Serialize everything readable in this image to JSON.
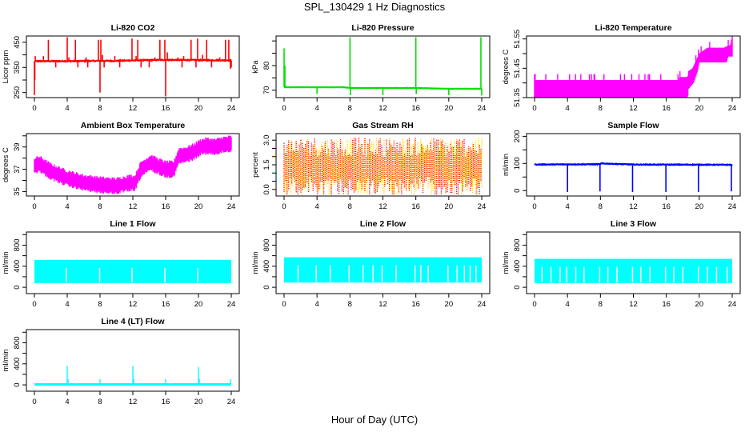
{
  "title": "SPL_130429  1 Hz Diagnostics",
  "xlabel": "Hour of Day (UTC)",
  "chart_data": [
    {
      "type": "line",
      "title": "Li-820 CO2",
      "ylabel": "Licor ppm",
      "color": "#ff0000",
      "xlim": [
        0,
        24
      ],
      "ylim": [
        230,
        475
      ],
      "xticks": [
        0,
        4,
        8,
        12,
        16,
        20,
        24
      ],
      "yticks": [
        250,
        300,
        350,
        400,
        450
      ],
      "ytick_labels": [
        "250",
        "",
        "350",
        "",
        "450"
      ],
      "baseline": [
        [
          0,
          375
        ],
        [
          4,
          375
        ],
        [
          8,
          376
        ],
        [
          10,
          376
        ],
        [
          12,
          378
        ],
        [
          16,
          380
        ],
        [
          20,
          379
        ],
        [
          24,
          378
        ]
      ],
      "noise": 5,
      "spikes": [
        [
          0,
          240
        ],
        [
          0.05,
          300
        ],
        [
          0.1,
          395
        ],
        [
          0.5,
          370
        ],
        [
          1.1,
          395
        ],
        [
          1.7,
          460
        ],
        [
          2.6,
          350
        ],
        [
          3.0,
          380
        ],
        [
          4.0,
          470
        ],
        [
          4.2,
          390
        ],
        [
          5.0,
          460
        ],
        [
          5.3,
          350
        ],
        [
          6.3,
          390
        ],
        [
          6.5,
          350
        ],
        [
          7.8,
          460
        ],
        [
          8.0,
          250
        ],
        [
          8.1,
          460
        ],
        [
          8.3,
          400
        ],
        [
          8.5,
          350
        ],
        [
          9.8,
          395
        ],
        [
          10.4,
          350
        ],
        [
          11.2,
          380
        ],
        [
          11.9,
          465
        ],
        [
          12.4,
          395
        ],
        [
          12.6,
          460
        ],
        [
          13.0,
          350
        ],
        [
          14.0,
          350
        ],
        [
          14.7,
          390
        ],
        [
          15.3,
          460
        ],
        [
          15.9,
          460
        ],
        [
          16.0,
          235
        ],
        [
          16.2,
          410
        ],
        [
          17.5,
          390
        ],
        [
          18.0,
          350
        ],
        [
          18.2,
          395
        ],
        [
          19.1,
          460
        ],
        [
          19.7,
          350
        ],
        [
          19.9,
          465
        ],
        [
          20.5,
          400
        ],
        [
          21.0,
          460
        ],
        [
          21.6,
          350
        ],
        [
          22.6,
          390
        ],
        [
          23.3,
          460
        ],
        [
          23.7,
          460
        ],
        [
          23.9,
          345
        ],
        [
          24.0,
          350
        ]
      ]
    },
    {
      "type": "line",
      "title": "Li-820 Pressure",
      "ylabel": "kPa",
      "color": "#00e000",
      "xlim": [
        0,
        24
      ],
      "ylim": [
        67,
        92
      ],
      "xticks": [
        0,
        4,
        8,
        12,
        16,
        20,
        24
      ],
      "yticks": [
        70,
        75,
        80,
        85,
        90
      ],
      "ytick_labels": [
        "70",
        "",
        "80",
        "",
        ""
      ],
      "baseline": [
        [
          0,
          71.2
        ],
        [
          7.3,
          71.2
        ],
        [
          8.0,
          70.9
        ],
        [
          16.0,
          70.9
        ],
        [
          20.0,
          70.6
        ],
        [
          24.0,
          70.6
        ]
      ],
      "noise": 0.1,
      "spikes": [
        [
          0,
          87
        ],
        [
          0.1,
          80
        ],
        [
          4.0,
          68.5
        ],
        [
          8.0,
          91.5
        ],
        [
          8.05,
          68.0
        ],
        [
          12.0,
          68.0
        ],
        [
          16.0,
          91.5
        ],
        [
          16.05,
          68.5
        ],
        [
          20.0,
          68.0
        ],
        [
          23.9,
          91.5
        ],
        [
          24.0,
          67.8
        ]
      ]
    },
    {
      "type": "area",
      "title": "Li-820 Temperature",
      "ylabel": "degrees C",
      "color": "#ff00ff",
      "xlim": [
        0,
        24
      ],
      "ylim": [
        51.35,
        51.56
      ],
      "xticks": [
        0,
        4,
        8,
        12,
        16,
        20,
        24
      ],
      "yticks": [
        51.35,
        51.4,
        51.45,
        51.5,
        51.55
      ],
      "ytick_labels": [
        "51.35",
        "",
        "51.45",
        "",
        "51.55"
      ],
      "band_low": [
        [
          0,
          51.35
        ],
        [
          18.6,
          51.35
        ],
        [
          18.7,
          51.38
        ],
        [
          19.3,
          51.4
        ],
        [
          19.8,
          51.44
        ],
        [
          20.0,
          51.47
        ],
        [
          23.3,
          51.47
        ],
        [
          23.5,
          51.49
        ],
        [
          24,
          51.49
        ]
      ],
      "band_high": [
        [
          0,
          51.41
        ],
        [
          17.5,
          51.41
        ],
        [
          17.6,
          51.42
        ],
        [
          18.6,
          51.42
        ],
        [
          18.7,
          51.44
        ],
        [
          19.2,
          51.45
        ],
        [
          20.0,
          51.5
        ],
        [
          21.0,
          51.52
        ],
        [
          23.0,
          51.52
        ],
        [
          23.8,
          51.53
        ],
        [
          24,
          51.56
        ]
      ]
    },
    {
      "type": "area",
      "title": "Ambient Box Temperature",
      "ylabel": "degrees C",
      "color": "#ff00ff",
      "xlim": [
        0,
        24
      ],
      "ylim": [
        34.6,
        40.2
      ],
      "xticks": [
        0,
        4,
        8,
        12,
        16,
        20,
        24
      ],
      "yticks": [
        35,
        36,
        37,
        38,
        39,
        40
      ],
      "ytick_labels": [
        "35",
        "",
        "37",
        "",
        "39",
        ""
      ],
      "center": [
        [
          0,
          37.3
        ],
        [
          0.6,
          37.5
        ],
        [
          2,
          36.8
        ],
        [
          4,
          36.2
        ],
        [
          6,
          35.8
        ],
        [
          8,
          35.6
        ],
        [
          10,
          35.5
        ],
        [
          11.8,
          35.8
        ],
        [
          12.2,
          35.7
        ],
        [
          13,
          37.0
        ],
        [
          14.2,
          37.6
        ],
        [
          15,
          37.3
        ],
        [
          16,
          37.0
        ],
        [
          17,
          37.0
        ],
        [
          17.6,
          38.2
        ],
        [
          18.5,
          38.3
        ],
        [
          19.5,
          38.6
        ],
        [
          20.3,
          39.0
        ],
        [
          21,
          39.1
        ],
        [
          22,
          39.0
        ],
        [
          23,
          39.2
        ],
        [
          24,
          39.3
        ]
      ],
      "halfwidth": 0.6
    },
    {
      "type": "line",
      "title": "Gas Stream RH",
      "ylabel": "percent",
      "color": "#ffd700",
      "color2": "#ff0000",
      "xlim": [
        0,
        24
      ],
      "ylim": [
        -0.4,
        3.4
      ],
      "xticks": [
        0,
        4,
        8,
        12,
        16,
        20,
        24
      ],
      "yticks": [
        0.0,
        0.5,
        1.0,
        1.5,
        2.0,
        2.5,
        3.0
      ],
      "ytick_labels": [
        "0.0",
        "",
        "",
        "1.5",
        "",
        "",
        "3.0"
      ],
      "mean": 1.4,
      "range": [
        -0.3,
        3.2
      ]
    },
    {
      "type": "line",
      "title": "Sample Flow",
      "ylabel": "ml/min",
      "color": "#0000ff",
      "xlim": [
        0,
        24
      ],
      "ylim": [
        -20,
        210
      ],
      "xticks": [
        0,
        4,
        8,
        12,
        16,
        20,
        24
      ],
      "yticks": [
        0,
        50,
        100,
        150,
        200
      ],
      "ytick_labels": [
        "0",
        "",
        "100",
        "",
        "200"
      ],
      "baseline": [
        [
          0,
          96
        ],
        [
          8,
          97
        ],
        [
          8.1,
          100
        ],
        [
          10,
          98
        ],
        [
          12,
          96
        ],
        [
          24,
          95
        ]
      ],
      "noise": 3,
      "spikes": [
        [
          4.0,
          -5
        ],
        [
          7.95,
          -3
        ],
        [
          11.9,
          -5
        ],
        [
          15.95,
          -5
        ],
        [
          19.9,
          -5
        ],
        [
          23.9,
          -3
        ]
      ]
    },
    {
      "type": "area",
      "title": "Line 1 Flow",
      "ylabel": "ml/min",
      "color": "#00ffff",
      "xlim": [
        0,
        24
      ],
      "ylim": [
        -120,
        1050
      ],
      "xticks": [
        0,
        4,
        8,
        12,
        16,
        20,
        24
      ],
      "yticks": [
        0,
        200,
        400,
        600,
        800,
        1000
      ],
      "ytick_labels": [
        "0",
        "",
        "400",
        "",
        "800",
        ""
      ],
      "low": 80,
      "high": 520,
      "gaps": [
        3.9,
        7.95,
        11.9,
        15.9,
        19.9
      ],
      "end": 24
    },
    {
      "type": "area",
      "title": "Line 2 Flow",
      "ylabel": "ml/min",
      "color": "#00ffff",
      "xlim": [
        0,
        24
      ],
      "ylim": [
        -120,
        1050
      ],
      "xticks": [
        0,
        4,
        8,
        12,
        16,
        20,
        24
      ],
      "yticks": [
        0,
        200,
        400,
        600,
        800,
        1000
      ],
      "ytick_labels": [
        "0",
        "",
        "400",
        "",
        "800",
        ""
      ],
      "low": 90,
      "high": 570,
      "gaps": [
        1.7,
        3.9,
        5.6,
        7.9,
        9.6,
        10.8,
        11.9,
        13.6,
        15.9,
        16.6,
        17.5,
        19.9,
        21.0,
        21.9,
        22.6,
        23.3
      ],
      "end": 24
    },
    {
      "type": "area",
      "title": "Line 3 Flow",
      "ylabel": "ml/min",
      "color": "#00ffff",
      "xlim": [
        0,
        24
      ],
      "ylim": [
        -120,
        1050
      ],
      "xticks": [
        0,
        4,
        8,
        12,
        16,
        20,
        24
      ],
      "yticks": [
        0,
        200,
        400,
        600,
        800,
        1000
      ],
      "ytick_labels": [
        "0",
        "",
        "400",
        "",
        "800",
        ""
      ],
      "low": 80,
      "high": 540,
      "gaps": [
        0.9,
        2.0,
        3.1,
        3.9,
        5.0,
        6.0,
        7.9,
        8.9,
        10.0,
        11.9,
        12.9,
        14.0,
        15.9,
        16.9,
        18.0,
        19.9,
        21.0,
        22.1,
        23.4
      ],
      "end": 24
    },
    {
      "type": "line",
      "title": "Line 4 (LT) Flow",
      "ylabel": "ml/min",
      "color": "#00ffff",
      "xlim": [
        0,
        24
      ],
      "ylim": [
        -120,
        1050
      ],
      "xticks": [
        0,
        4,
        8,
        12,
        16,
        20,
        24
      ],
      "yticks": [
        0,
        200,
        400,
        600,
        800,
        1000
      ],
      "ytick_labels": [
        "0",
        "",
        "400",
        "",
        "800",
        ""
      ],
      "baseline_value": 10,
      "spikes": [
        [
          4.0,
          360
        ],
        [
          4.1,
          110
        ],
        [
          8.0,
          110
        ],
        [
          12.0,
          360
        ],
        [
          12.1,
          110
        ],
        [
          16.0,
          110
        ],
        [
          20.0,
          340
        ],
        [
          20.1,
          110
        ],
        [
          23.9,
          110
        ]
      ]
    }
  ]
}
